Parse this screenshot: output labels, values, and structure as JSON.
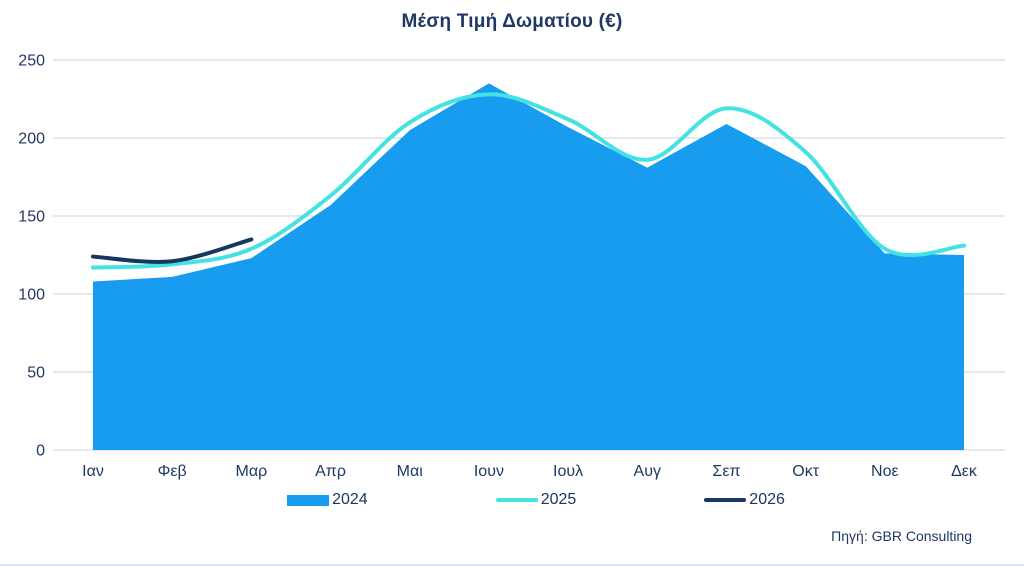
{
  "title": "Μέση Τιμή Δωματίου (€)",
  "source": "Πηγή: GBR Consulting",
  "colors": {
    "series_2024": "#189CF0",
    "series_2025": "#45E2E4",
    "series_2026": "#17375E",
    "axis_text": "#1F3864",
    "gridline": "#D9D9D9",
    "title_text": "#1F3864"
  },
  "legend": [
    {
      "label": "2024",
      "type": "area",
      "color": "#189CF0"
    },
    {
      "label": "2025",
      "type": "line",
      "color": "#45E2E4"
    },
    {
      "label": "2026",
      "type": "line",
      "color": "#17375E"
    }
  ],
  "chart_data": {
    "type": "area",
    "title": "Μέση Τιμή Δωματίου (€)",
    "categories": [
      "Ιαν",
      "Φεβ",
      "Μαρ",
      "Απρ",
      "Μαι",
      "Ιουν",
      "Ιουλ",
      "Αυγ",
      "Σεπ",
      "Οκτ",
      "Νοε",
      "Δεκ"
    ],
    "series": [
      {
        "name": "2024",
        "type": "area",
        "smooth": false,
        "color": "#189CF0",
        "values": [
          108,
          111,
          123,
          157,
          205,
          235,
          207,
          181,
          209,
          182,
          126,
          125
        ]
      },
      {
        "name": "2025",
        "type": "line",
        "smooth": true,
        "color": "#45E2E4",
        "values": [
          117,
          119,
          129,
          163,
          210,
          228,
          212,
          186,
          219,
          191,
          129,
          131
        ]
      },
      {
        "name": "2026",
        "type": "line",
        "smooth": true,
        "color": "#17375E",
        "values": [
          124,
          121,
          135,
          null,
          null,
          null,
          null,
          null,
          null,
          null,
          null,
          null
        ]
      }
    ],
    "xlabel": "",
    "ylabel": "",
    "ylim": [
      0,
      250
    ],
    "yticks": [
      0,
      50,
      100,
      150,
      200,
      250
    ],
    "grid": true,
    "legend_position": "bottom"
  }
}
